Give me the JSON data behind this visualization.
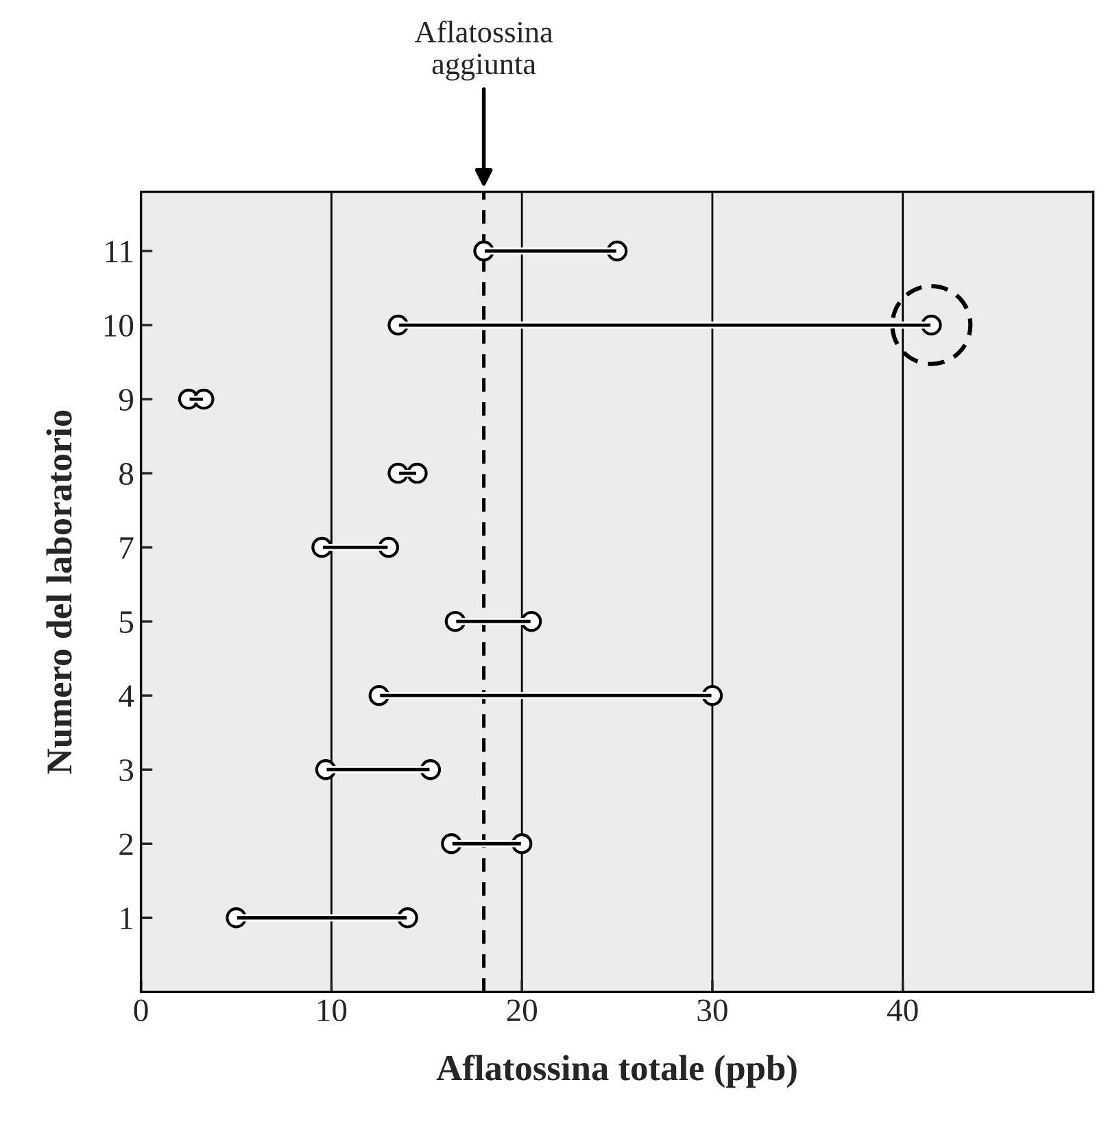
{
  "chart_data": {
    "type": "scatter",
    "orientation": "horizontal",
    "xlabel": "Aflatossina totale (ppb)",
    "ylabel": "Numero del laboratorio",
    "categories": [
      "11",
      "10",
      "9",
      "8",
      "7",
      "5",
      "4",
      "3",
      "2",
      "1"
    ],
    "series": [
      {
        "color": "#000000",
        "marker": "circle",
        "values": [
          18,
          13.5,
          2.5,
          13.5,
          9.5,
          16.5,
          12.5,
          9.7,
          16.3,
          5
        ]
      },
      {
        "color": "#000000",
        "marker": "circle",
        "values": [
          25,
          41.5,
          3.3,
          14.5,
          13,
          20.5,
          30,
          15.2,
          20,
          14
        ]
      },
      {
        "type": "bar",
        "color": "#000000",
        "base": [
          18,
          13.5,
          2.5,
          13.5,
          9.5,
          16.5,
          12.5,
          9.7,
          16.3,
          5
        ],
        "values": [
          7,
          28,
          0.8,
          1,
          3.5,
          4,
          17.5,
          5.5,
          3.7,
          9
        ]
      }
    ],
    "xlim": [
      0,
      50
    ],
    "xticks": [
      0,
      10,
      20,
      30,
      40
    ],
    "grid": "x",
    "ref_lines": [
      {
        "axis": "x",
        "value": 18,
        "label": "Aflatossina\naggiunta",
        "line_style": "dashed",
        "color": "#000000"
      }
    ]
  }
}
